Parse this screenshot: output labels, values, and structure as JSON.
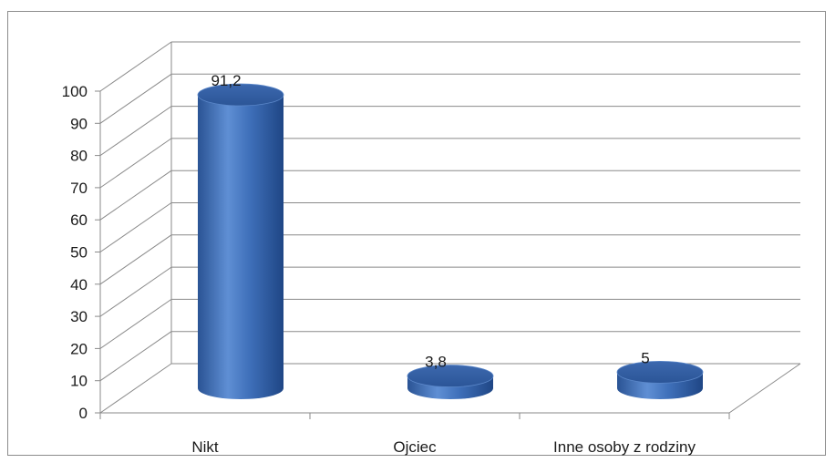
{
  "chart_data": {
    "type": "bar",
    "style": "3d-cylinder",
    "categories": [
      "Nikt",
      "Ojciec",
      "Inne osoby z rodziny"
    ],
    "values": [
      91.2,
      3.8,
      5
    ],
    "value_labels": [
      "91,2",
      "3,8",
      "5"
    ],
    "yticks": [
      "0",
      "10",
      "20",
      "30",
      "40",
      "50",
      "60",
      "70",
      "80",
      "90",
      "100"
    ],
    "ylim": [
      0,
      100
    ],
    "grid": true,
    "legend": "none",
    "bar_color": "#3d6fb8"
  }
}
